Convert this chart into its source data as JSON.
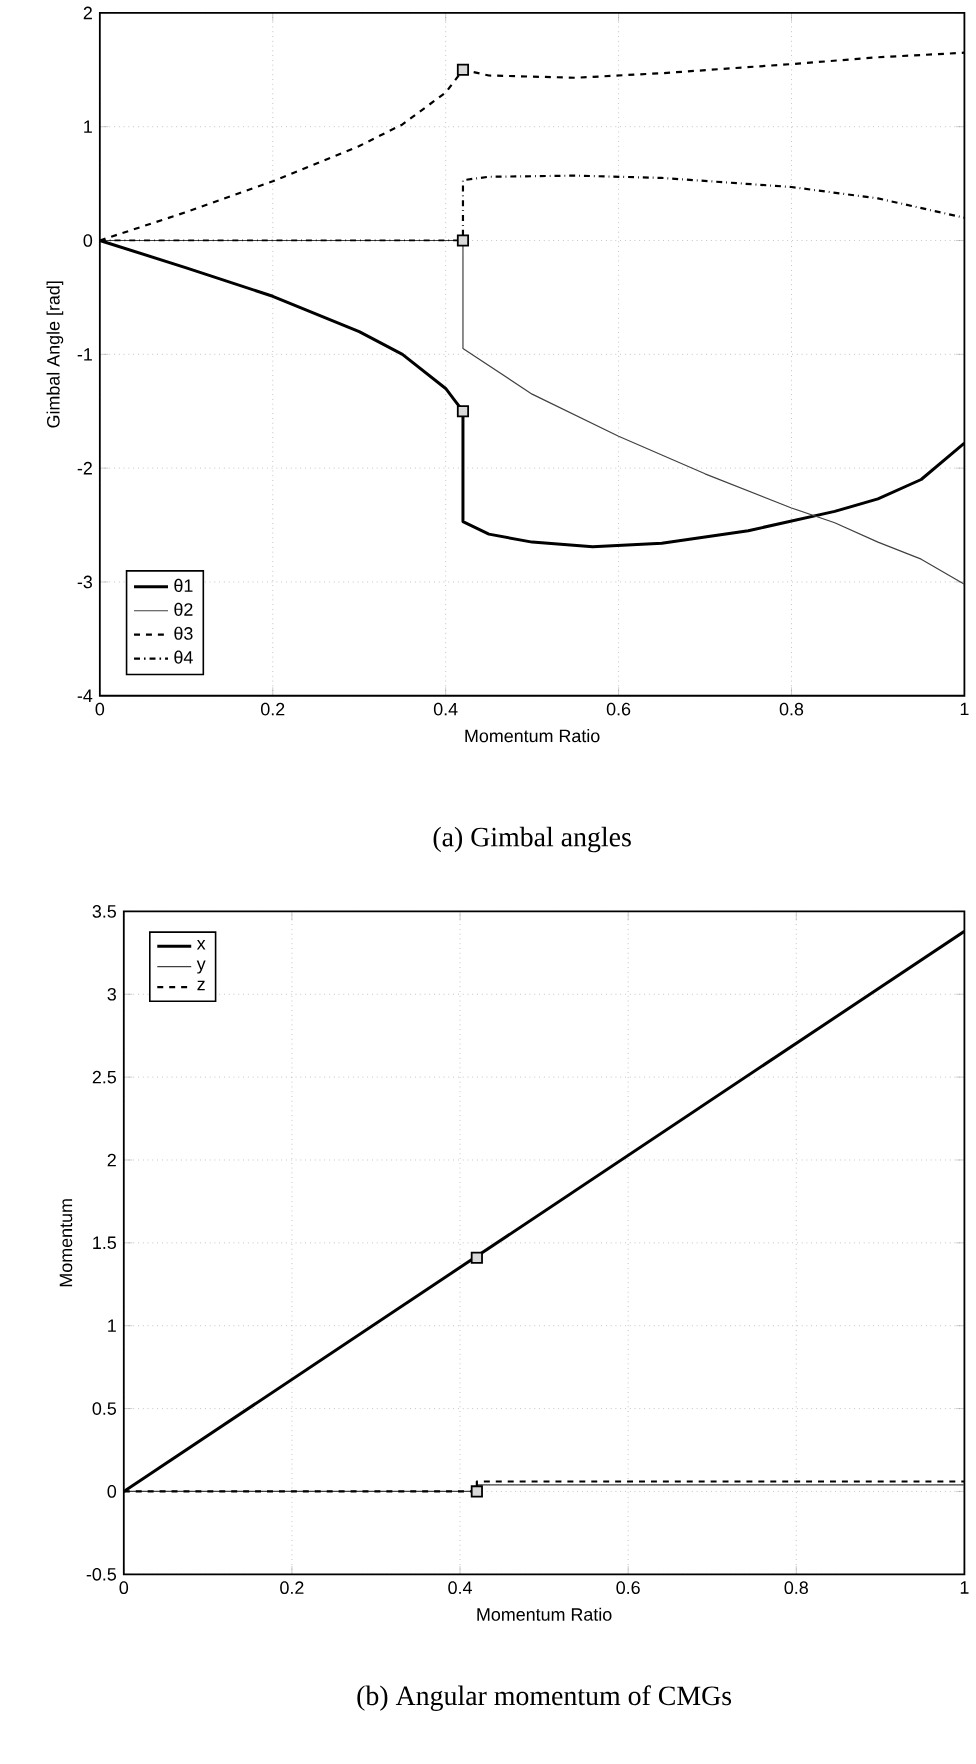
{
  "chart_data": [
    {
      "type": "line",
      "title": "(a) Gimbal angles",
      "xlabel": "Momentum Ratio",
      "ylabel": "Gimbal Angle [rad]",
      "xlim": [
        0,
        1
      ],
      "ylim": [
        -4,
        2
      ],
      "xticks": [
        0,
        0.2,
        0.4,
        0.6,
        0.8,
        1
      ],
      "yticks": [
        -4,
        -3,
        -2,
        -1,
        0,
        1,
        2
      ],
      "grid": true,
      "legend": "bottom left",
      "marker": "none",
      "series": [
        {
          "name": "θ1",
          "color": "#000000",
          "line_style": "solid",
          "x": [
            0,
            0.1,
            0.2,
            0.3,
            0.35,
            0.4,
            0.41,
            0.42,
            0.42,
            0.45,
            0.5,
            0.57,
            0.65,
            0.75,
            0.85,
            0.9,
            0.95,
            1.0
          ],
          "values": [
            0,
            -0.24,
            -0.49,
            -0.8,
            -1.0,
            -1.3,
            -1.4,
            -1.5,
            -2.47,
            -2.58,
            -2.65,
            -2.69,
            -2.66,
            -2.55,
            -2.38,
            -2.27,
            -2.1,
            -1.78
          ]
        },
        {
          "name": "θ2",
          "color": "#404040",
          "line_style": "solid",
          "x": [
            0,
            0.42,
            0.42,
            0.5,
            0.6,
            0.7,
            0.8,
            0.85,
            0.9,
            0.95,
            1.0
          ],
          "values": [
            0,
            0,
            -0.95,
            -1.35,
            -1.72,
            -2.05,
            -2.35,
            -2.48,
            -2.65,
            -2.8,
            -3.02
          ]
        },
        {
          "name": "θ3",
          "color": "#000000",
          "line_style": "dashed",
          "x": [
            0,
            0.1,
            0.2,
            0.3,
            0.35,
            0.4,
            0.42,
            0.45,
            0.55,
            0.65,
            0.8,
            0.9,
            1.0
          ],
          "values": [
            0,
            0.25,
            0.52,
            0.83,
            1.02,
            1.3,
            1.5,
            1.45,
            1.43,
            1.47,
            1.55,
            1.61,
            1.65
          ]
        },
        {
          "name": "θ4",
          "color": "#000000",
          "line_style": "dashdot",
          "x": [
            0,
            0.42,
            0.42,
            0.45,
            0.55,
            0.65,
            0.8,
            0.9,
            1.0
          ],
          "values": [
            0,
            0,
            0.53,
            0.56,
            0.57,
            0.55,
            0.47,
            0.37,
            0.2
          ]
        },
        {
          "type": "scatter",
          "marker": "square",
          "color": "#d9d9d9",
          "x": [
            0.42,
            0.42,
            0.42
          ],
          "values": [
            1.5,
            0,
            -1.5
          ]
        }
      ]
    },
    {
      "type": "line",
      "title": "(b) Angular momentum of CMGs",
      "xlabel": "Momentum Ratio",
      "ylabel": "Momentum",
      "xlim": [
        0,
        1
      ],
      "ylim": [
        -0.5,
        3.5
      ],
      "xticks": [
        0,
        0.2,
        0.4,
        0.6,
        0.8,
        1
      ],
      "yticks": [
        -0.5,
        0,
        0.5,
        1,
        1.5,
        2,
        2.5,
        3,
        3.5
      ],
      "grid": true,
      "legend": "top left",
      "marker": "none",
      "series": [
        {
          "name": "x",
          "color": "#000000",
          "line_style": "solid",
          "x": [
            0,
            1
          ],
          "values": [
            0,
            3.38
          ]
        },
        {
          "name": "y",
          "color": "#404040",
          "line_style": "solid",
          "x": [
            0,
            0.42,
            0.42,
            1
          ],
          "values": [
            0,
            0,
            0.04,
            0.04
          ]
        },
        {
          "name": "z",
          "color": "#000000",
          "line_style": "dashed",
          "x": [
            0,
            0.42,
            0.42,
            1
          ],
          "values": [
            0,
            0,
            0.06,
            0.06
          ]
        },
        {
          "type": "scatter",
          "marker": "square",
          "color": "#d9d9d9",
          "x": [
            0.42,
            0.42
          ],
          "values": [
            1.41,
            0
          ]
        }
      ]
    }
  ]
}
